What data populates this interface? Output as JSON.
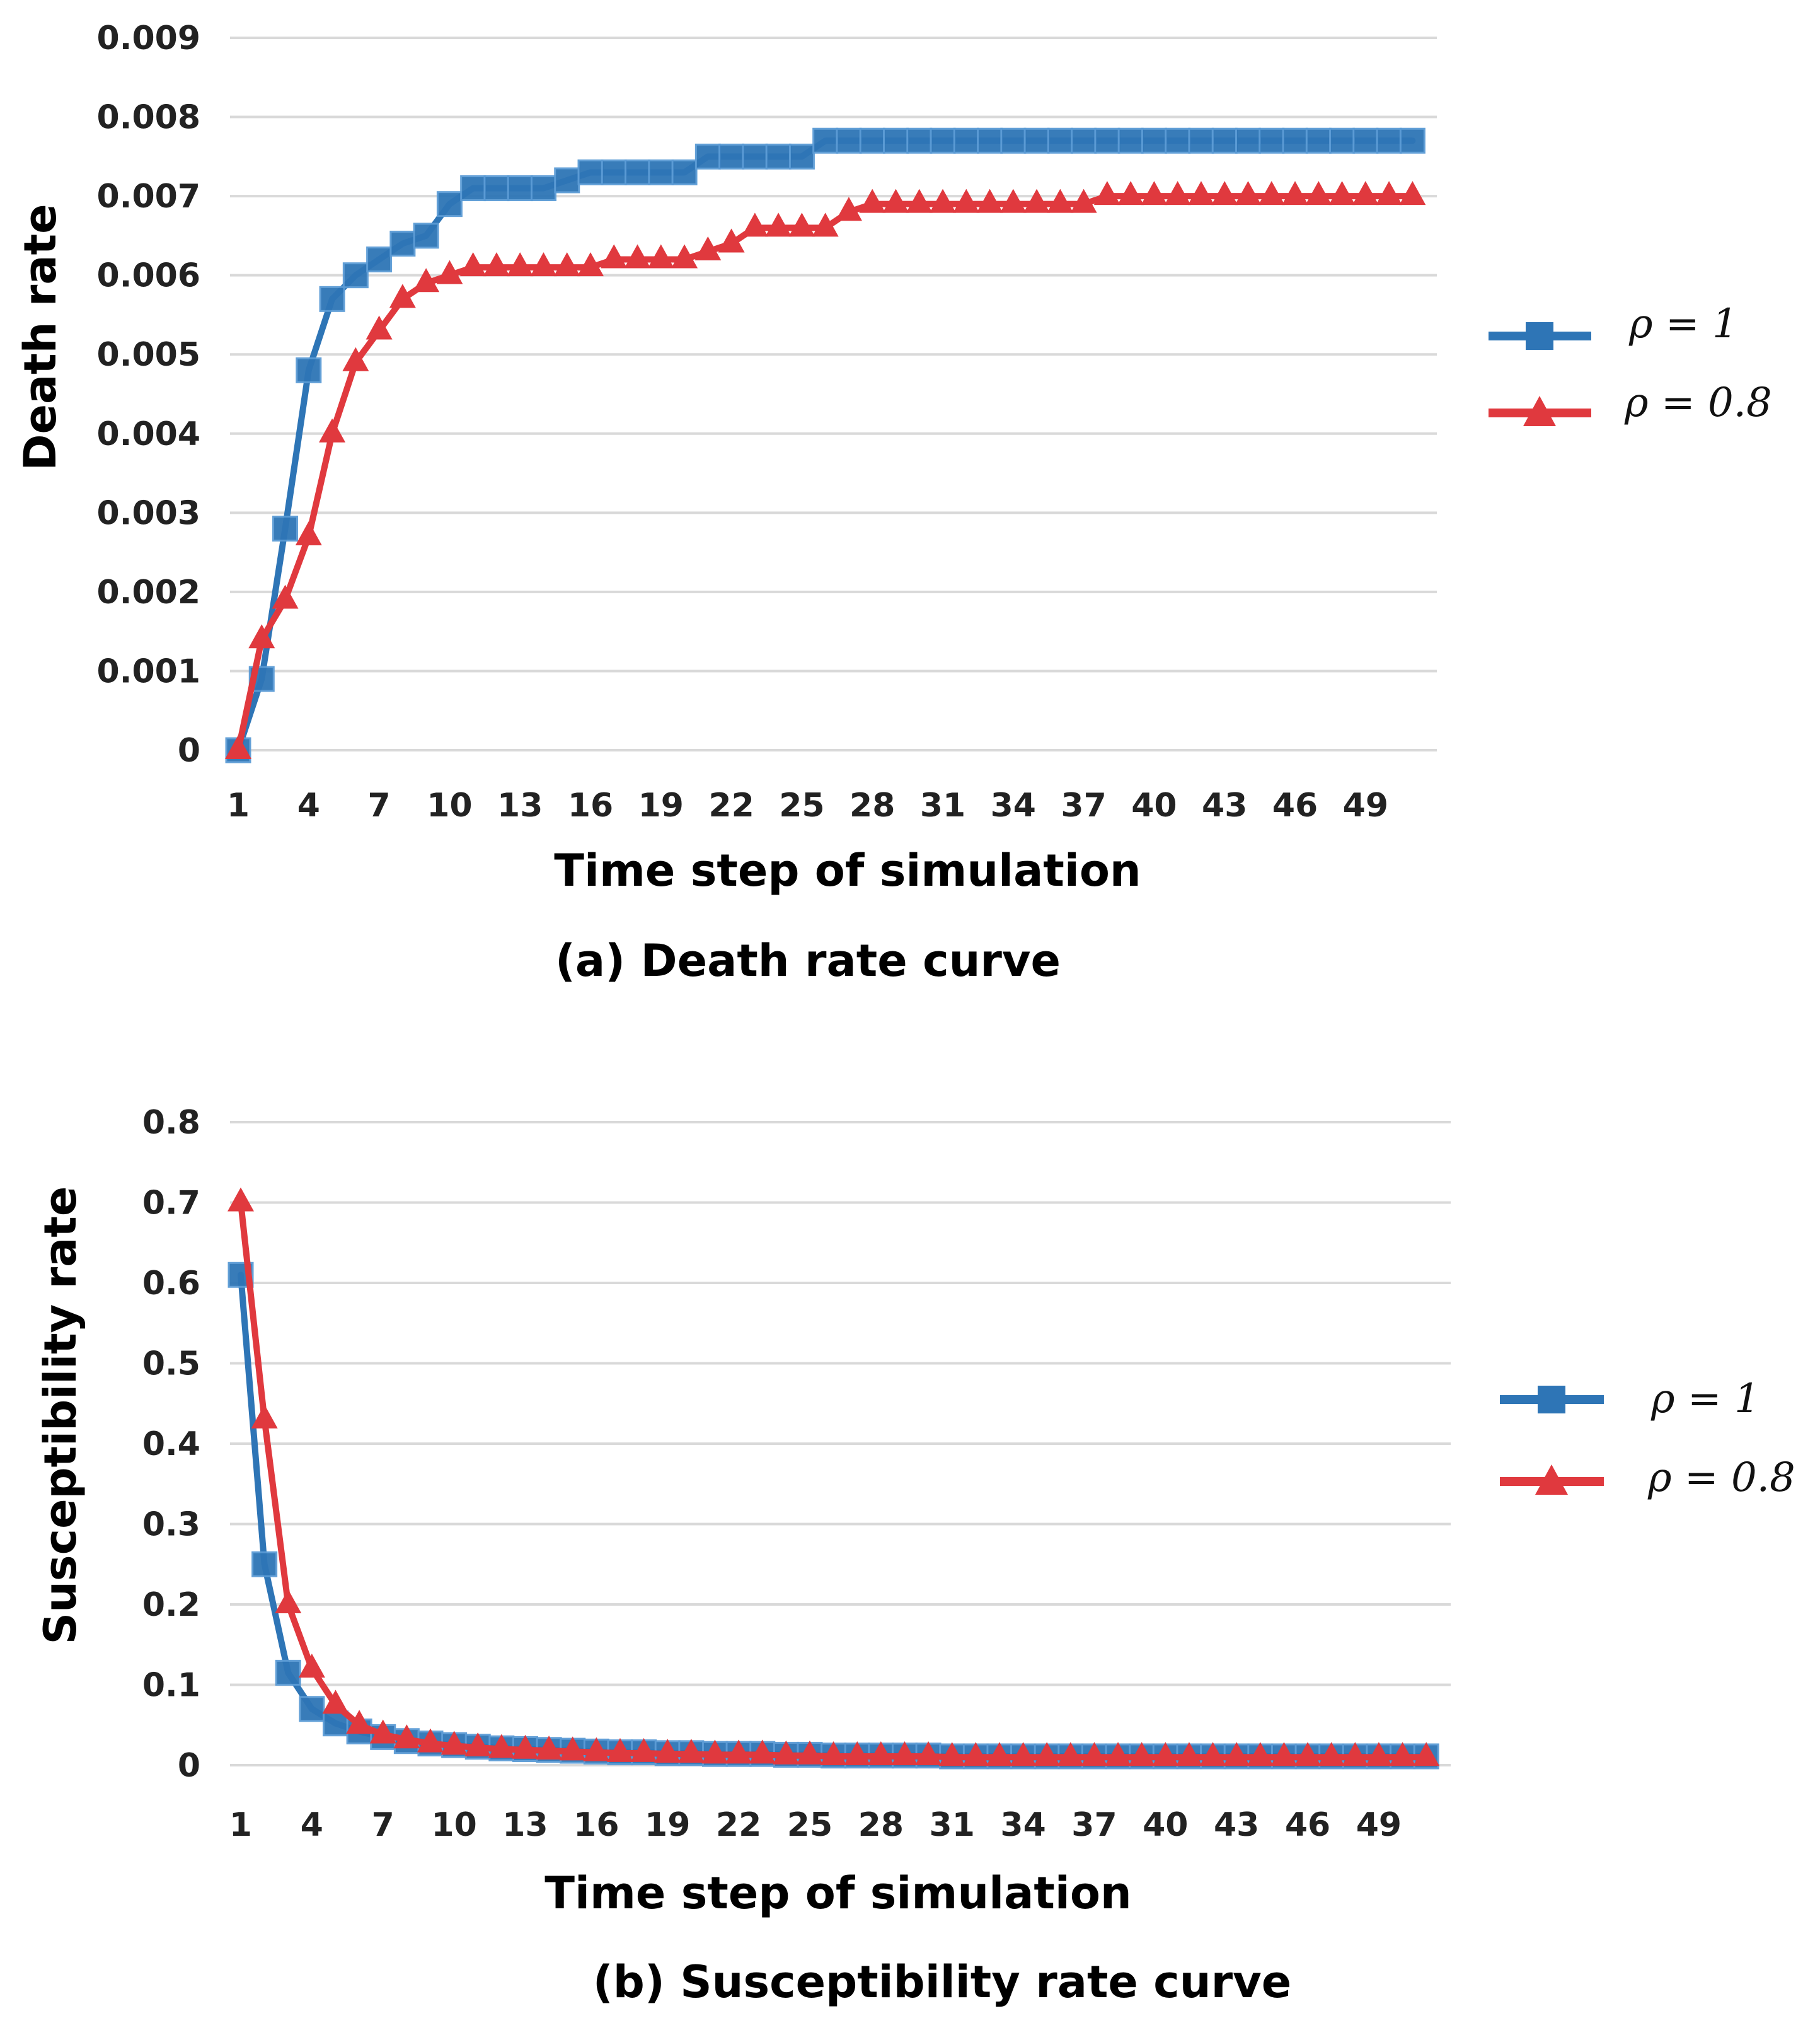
{
  "colors": {
    "series1": "#2E75B6",
    "series2": "#E0393E",
    "grid": "#D9D9D9"
  },
  "chart_data": [
    {
      "type": "line",
      "title": "(a) Death rate curve",
      "xlabel": "Time step of simulation",
      "ylabel": "Death rate",
      "xlim": [
        1,
        51
      ],
      "ylim": [
        0,
        0.009
      ],
      "x_ticks": [
        "1",
        "4",
        "7",
        "10",
        "13",
        "16",
        "19",
        "22",
        "25",
        "28",
        "31",
        "34",
        "37",
        "40",
        "43",
        "46",
        "49"
      ],
      "y_ticks": [
        "0",
        "0.001",
        "0.002",
        "0.003",
        "0.004",
        "0.005",
        "0.006",
        "0.007",
        "0.008",
        "0.009"
      ],
      "grid": true,
      "legend": "right",
      "series": [
        {
          "name": "ρ = 1",
          "marker": "square",
          "color": "#2E75B6",
          "values": [
            0,
            0.0009,
            0.0028,
            0.0048,
            0.0057,
            0.006,
            0.0062,
            0.0064,
            0.0065,
            0.0069,
            0.0071,
            0.0071,
            0.0071,
            0.0071,
            0.0072,
            0.0073,
            0.0073,
            0.0073,
            0.0073,
            0.0073,
            0.0075,
            0.0075,
            0.0075,
            0.0075,
            0.0075,
            0.0077,
            0.0077,
            0.0077,
            0.0077,
            0.0077,
            0.0077,
            0.0077,
            0.0077,
            0.0077,
            0.0077,
            0.0077,
            0.0077,
            0.0077,
            0.0077,
            0.0077,
            0.0077,
            0.0077,
            0.0077,
            0.0077,
            0.0077,
            0.0077,
            0.0077,
            0.0077,
            0.0077,
            0.0077,
            0.0077
          ]
        },
        {
          "name": "ρ = 0.8",
          "marker": "triangle",
          "color": "#E0393E",
          "values": [
            0,
            0.0014,
            0.0019,
            0.0027,
            0.004,
            0.0049,
            0.0053,
            0.0057,
            0.0059,
            0.006,
            0.0061,
            0.0061,
            0.0061,
            0.0061,
            0.0061,
            0.0061,
            0.0062,
            0.0062,
            0.0062,
            0.0062,
            0.0063,
            0.0064,
            0.0066,
            0.0066,
            0.0066,
            0.0066,
            0.0068,
            0.0069,
            0.0069,
            0.0069,
            0.0069,
            0.0069,
            0.0069,
            0.0069,
            0.0069,
            0.0069,
            0.0069,
            0.007,
            0.007,
            0.007,
            0.007,
            0.007,
            0.007,
            0.007,
            0.007,
            0.007,
            0.007,
            0.007,
            0.007,
            0.007,
            0.007
          ]
        }
      ]
    },
    {
      "type": "line",
      "title": "(b) Susceptibility rate curve",
      "xlabel": "Time step of simulation",
      "ylabel": "Susceptibility rate",
      "xlim": [
        1,
        51
      ],
      "ylim": [
        0,
        0.8
      ],
      "x_ticks": [
        "1",
        "4",
        "7",
        "10",
        "13",
        "16",
        "19",
        "22",
        "25",
        "28",
        "31",
        "34",
        "37",
        "40",
        "43",
        "46",
        "49"
      ],
      "y_ticks": [
        "0",
        "0.1",
        "0.2",
        "0.3",
        "0.4",
        "0.5",
        "0.6",
        "0.7",
        "0.8"
      ],
      "grid": true,
      "legend": "right",
      "series": [
        {
          "name": "ρ = 1",
          "marker": "square",
          "color": "#2E75B6",
          "values": [
            0.61,
            0.25,
            0.115,
            0.07,
            0.052,
            0.042,
            0.035,
            0.03,
            0.027,
            0.025,
            0.023,
            0.021,
            0.02,
            0.019,
            0.018,
            0.017,
            0.016,
            0.016,
            0.015,
            0.015,
            0.014,
            0.014,
            0.014,
            0.013,
            0.013,
            0.012,
            0.012,
            0.012,
            0.012,
            0.012,
            0.011,
            0.011,
            0.011,
            0.011,
            0.011,
            0.011,
            0.011,
            0.011,
            0.011,
            0.011,
            0.011,
            0.011,
            0.011,
            0.011,
            0.011,
            0.011,
            0.011,
            0.011,
            0.011,
            0.011,
            0.011
          ]
        },
        {
          "name": "ρ = 0.8",
          "marker": "triangle",
          "color": "#E0393E",
          "values": [
            0.7,
            0.43,
            0.2,
            0.12,
            0.075,
            0.05,
            0.038,
            0.032,
            0.027,
            0.024,
            0.022,
            0.02,
            0.019,
            0.018,
            0.017,
            0.016,
            0.015,
            0.015,
            0.014,
            0.014,
            0.013,
            0.013,
            0.013,
            0.012,
            0.012,
            0.011,
            0.011,
            0.011,
            0.011,
            0.011,
            0.01,
            0.01,
            0.01,
            0.01,
            0.01,
            0.01,
            0.01,
            0.01,
            0.01,
            0.01,
            0.01,
            0.01,
            0.01,
            0.01,
            0.01,
            0.01,
            0.01,
            0.01,
            0.01,
            0.01,
            0.01
          ]
        }
      ]
    }
  ]
}
